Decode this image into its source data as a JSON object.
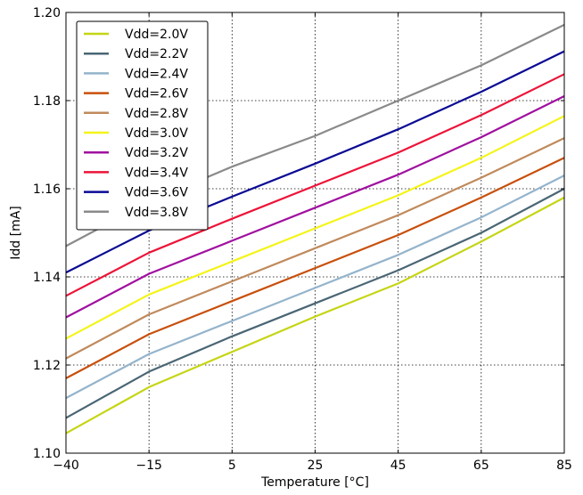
{
  "chart_data": {
    "type": "line",
    "title": "",
    "xlabel": "Temperature [°C]",
    "ylabel": "Idd [mA]",
    "x": [
      -40,
      -15,
      5,
      25,
      45,
      65,
      85
    ],
    "x_tick_labels": [
      "−40",
      "−15",
      "5",
      "25",
      "45",
      "65",
      "85"
    ],
    "y_ticks": [
      1.1,
      1.12,
      1.14,
      1.16,
      1.18,
      1.2
    ],
    "y_tick_labels": [
      "1.10",
      "1.12",
      "1.14",
      "1.16",
      "1.18",
      "1.20"
    ],
    "ylim": [
      1.1,
      1.2
    ],
    "grid": true,
    "legend_position": "top-left",
    "series": [
      {
        "name": "Vdd=2.0V",
        "color": "#c5d514",
        "values": [
          1.1045,
          1.115,
          1.123,
          1.131,
          1.1385,
          1.148,
          1.158
        ]
      },
      {
        "name": "Vdd=2.2V",
        "color": "#4a6674",
        "values": [
          1.108,
          1.1185,
          1.1265,
          1.134,
          1.1415,
          1.15,
          1.16
        ]
      },
      {
        "name": "Vdd=2.4V",
        "color": "#94b4cc",
        "values": [
          1.1125,
          1.1225,
          1.13,
          1.1375,
          1.145,
          1.1535,
          1.163
        ]
      },
      {
        "name": "Vdd=2.6V",
        "color": "#c8500c",
        "values": [
          1.117,
          1.127,
          1.1345,
          1.142,
          1.1495,
          1.158,
          1.167
        ]
      },
      {
        "name": "Vdd=2.8V",
        "color": "#c08a5c",
        "values": [
          1.1215,
          1.1315,
          1.139,
          1.1465,
          1.154,
          1.1625,
          1.1715
        ]
      },
      {
        "name": "Vdd=3.0V",
        "color": "#f4f41a",
        "values": [
          1.126,
          1.136,
          1.1435,
          1.151,
          1.1585,
          1.167,
          1.1765
        ]
      },
      {
        "name": "Vdd=3.2V",
        "color": "#a010a0",
        "values": [
          1.1308,
          1.1407,
          1.1482,
          1.1557,
          1.1632,
          1.1717,
          1.181
        ]
      },
      {
        "name": "Vdd=3.4V",
        "color": "#ec1438",
        "values": [
          1.1357,
          1.1455,
          1.1532,
          1.1607,
          1.1682,
          1.1767,
          1.186
        ]
      },
      {
        "name": "Vdd=3.6V",
        "color": "#0a0a94",
        "values": [
          1.141,
          1.1505,
          1.1582,
          1.1657,
          1.1735,
          1.182,
          1.1912
        ]
      },
      {
        "name": "Vdd=3.8V",
        "color": "#8a8a8a",
        "values": [
          1.147,
          1.157,
          1.165,
          1.172,
          1.18,
          1.188,
          1.1972
        ]
      }
    ]
  }
}
